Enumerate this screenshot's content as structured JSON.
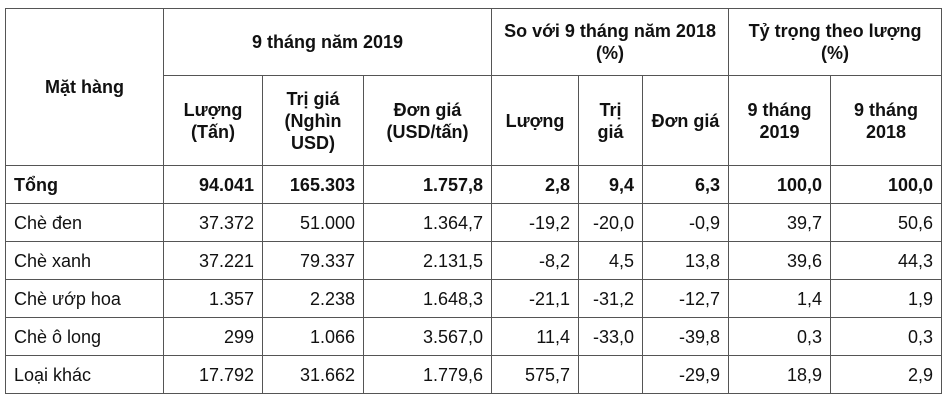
{
  "table": {
    "header": {
      "item": "Mặt hàng",
      "groups": [
        "9 tháng năm 2019",
        "So với 9 tháng năm 2018 (%)",
        "Tỷ trọng theo lượng (%)"
      ],
      "columns": [
        "Lượng (Tấn)",
        "Trị giá (Nghìn USD)",
        "Đơn giá (USD/tấn)",
        "Lượng",
        "Trị giá",
        "Đơn giá",
        "9 tháng 2019",
        "9 tháng 2018"
      ]
    },
    "rows": [
      [
        "Tổng",
        "94.041",
        "165.303",
        "1.757,8",
        "2,8",
        "9,4",
        "6,3",
        "100,0",
        "100,0"
      ],
      [
        "Chè đen",
        "37.372",
        "51.000",
        "1.364,7",
        "-19,2",
        "-20,0",
        "-0,9",
        "39,7",
        "50,6"
      ],
      [
        "Chè xanh",
        "37.221",
        "79.337",
        "2.131,5",
        "-8,2",
        "4,5",
        "13,8",
        "39,6",
        "44,3"
      ],
      [
        "Chè ướp hoa",
        "1.357",
        "2.238",
        "1.648,3",
        "-21,1",
        "-31,2",
        "-12,7",
        "1,4",
        "1,9"
      ],
      [
        "Chè ô long",
        "299",
        "1.066",
        "3.567,0",
        "11,4",
        "-33,0",
        "-39,8",
        "0,3",
        "0,3"
      ],
      [
        "Loại khác",
        "17.792",
        "31.662",
        "1.779,6",
        "575,7",
        null,
        "-29,9",
        "18,9",
        "2,9"
      ]
    ]
  }
}
